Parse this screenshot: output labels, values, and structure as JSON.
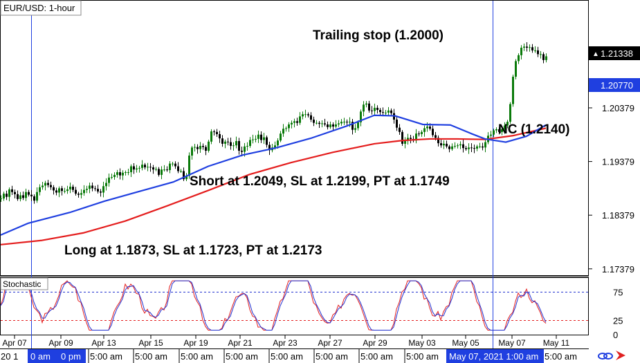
{
  "window_title": "EUR/USD: 1-hour",
  "stoch_title": "Stochastic",
  "annotations": {
    "trailing_stop": "Trailing stop (1.2000)",
    "nc": "NC (1.2140)",
    "short": "Short at 1.2049, SL at 1.2199, PT at 1.1749",
    "long": "Long at 1.1873, SL at 1.1723, PT at 1.2173"
  },
  "price_badges": {
    "last": "1.21338",
    "ma": "1.20770"
  },
  "bottom_bar": {
    "left_fragment": "20 1",
    "cursor_left_time": "0 am",
    "cursor_left_frag": "0 pm",
    "cursor_right_label": "May 07, 2021 1:00 am",
    "right_fragment": "5:00 am",
    "five_am": "5:00 am"
  },
  "colors": {
    "candle_up": "#0a7a0a",
    "candle_down": "#000000",
    "ma_fast": "#1f3fe0",
    "ma_slow": "#e41d1d",
    "stoch_k": "#e41d1d",
    "stoch_d": "#2030d0",
    "cursor": "#1f3fe0",
    "badge_blue": "#1f3fe0",
    "badge_black": "#000000"
  },
  "chart_data": {
    "type": "candlestick",
    "symbol": "EUR/USD",
    "timeframe": "1-hour",
    "price_axis": {
      "ticks": [
        "1.20379",
        "1.19379",
        "1.18379",
        "1.17379"
      ],
      "range": [
        1.1706,
        1.2225
      ]
    },
    "x_ticks": [
      "Apr 07",
      "Apr 09",
      "Apr 13",
      "Apr 15",
      "Apr 19",
      "Apr 21",
      "Apr 23",
      "Apr 27",
      "Apr 29",
      "May 03",
      "May 05",
      "May 07",
      "May 11"
    ],
    "close_path": [
      [
        0,
        1.1869
      ],
      [
        4,
        1.1878
      ],
      [
        8,
        1.1872
      ],
      [
        12,
        1.1886
      ],
      [
        16,
        1.1881
      ],
      [
        20,
        1.1877
      ],
      [
        24,
        1.1868
      ],
      [
        28,
        1.1875
      ],
      [
        32,
        1.187
      ],
      [
        36,
        1.1881
      ],
      [
        40,
        1.1876
      ],
      [
        44,
        1.1873
      ],
      [
        48,
        1.1865
      ],
      [
        52,
        1.1881
      ],
      [
        56,
        1.189
      ],
      [
        60,
        1.1893
      ],
      [
        64,
        1.1898
      ],
      [
        68,
        1.1894
      ],
      [
        72,
        1.189
      ],
      [
        76,
        1.1884
      ],
      [
        80,
        1.188
      ],
      [
        84,
        1.1888
      ],
      [
        88,
        1.1883
      ],
      [
        92,
        1.1883
      ],
      [
        96,
        1.1886
      ],
      [
        100,
        1.1891
      ],
      [
        104,
        1.1885
      ],
      [
        108,
        1.1878
      ],
      [
        112,
        1.1876
      ],
      [
        116,
        1.1879
      ],
      [
        120,
        1.1885
      ],
      [
        124,
        1.1887
      ],
      [
        128,
        1.1893
      ],
      [
        132,
        1.1888
      ],
      [
        136,
        1.1887
      ],
      [
        140,
        1.1882
      ],
      [
        144,
        1.188
      ],
      [
        148,
        1.1892
      ],
      [
        152,
        1.1898
      ],
      [
        156,
        1.1908
      ],
      [
        160,
        1.1909
      ],
      [
        164,
        1.1913
      ],
      [
        168,
        1.1918
      ],
      [
        172,
        1.1912
      ],
      [
        176,
        1.1917
      ],
      [
        180,
        1.1918
      ],
      [
        184,
        1.1918
      ],
      [
        188,
        1.1929
      ],
      [
        192,
        1.1923
      ],
      [
        196,
        1.1925
      ],
      [
        200,
        1.1926
      ],
      [
        204,
        1.1932
      ],
      [
        208,
        1.1927
      ],
      [
        212,
        1.1928
      ],
      [
        216,
        1.1927
      ],
      [
        220,
        1.1923
      ],
      [
        224,
        1.1924
      ],
      [
        228,
        1.1913
      ],
      [
        232,
        1.1923
      ],
      [
        236,
        1.1923
      ],
      [
        240,
        1.1922
      ],
      [
        244,
        1.1934
      ],
      [
        248,
        1.1934
      ],
      [
        252,
        1.1929
      ],
      [
        256,
        1.192
      ],
      [
        260,
        1.192
      ],
      [
        264,
        1.1905
      ],
      [
        268,
        1.1911
      ],
      [
        272,
        1.1949
      ],
      [
        276,
        1.1964
      ],
      [
        280,
        1.1965
      ],
      [
        284,
        1.1961
      ],
      [
        288,
        1.1967
      ],
      [
        292,
        1.1965
      ],
      [
        296,
        1.1958
      ],
      [
        300,
        1.1975
      ],
      [
        304,
        1.1994
      ],
      [
        308,
        1.1993
      ],
      [
        312,
        1.1989
      ],
      [
        316,
        1.1981
      ],
      [
        320,
        1.1971
      ],
      [
        324,
        1.1975
      ],
      [
        328,
        1.1974
      ],
      [
        332,
        1.1967
      ],
      [
        336,
        1.1968
      ],
      [
        340,
        1.1976
      ],
      [
        344,
        1.1958
      ],
      [
        348,
        1.1956
      ],
      [
        352,
        1.1966
      ],
      [
        356,
        1.1967
      ],
      [
        360,
        1.1978
      ],
      [
        364,
        1.1979
      ],
      [
        368,
        1.198
      ],
      [
        372,
        1.1988
      ],
      [
        376,
        1.1978
      ],
      [
        380,
        1.1983
      ],
      [
        384,
        1.1969
      ],
      [
        388,
        1.1959
      ],
      [
        392,
        1.1964
      ],
      [
        396,
        1.1968
      ],
      [
        400,
        1.1977
      ],
      [
        404,
        1.199
      ],
      [
        408,
        1.1999
      ],
      [
        412,
        1.2
      ],
      [
        416,
        1.2007
      ],
      [
        420,
        1.201
      ],
      [
        424,
        1.2013
      ],
      [
        428,
        1.201
      ],
      [
        432,
        1.2022
      ],
      [
        436,
        1.2026
      ],
      [
        440,
        1.2026
      ],
      [
        444,
        1.2024
      ],
      [
        448,
        1.2016
      ],
      [
        452,
        1.201
      ],
      [
        456,
        1.201
      ],
      [
        460,
        1.2008
      ],
      [
        464,
        1.2009
      ],
      [
        468,
        1.2007
      ],
      [
        472,
        1.2002
      ],
      [
        476,
        1.2007
      ],
      [
        480,
        1.2003
      ],
      [
        484,
        1.2007
      ],
      [
        488,
        1.2009
      ],
      [
        492,
        1.2012
      ],
      [
        496,
        1.2012
      ],
      [
        500,
        1.2011
      ],
      [
        504,
        1.2012
      ],
      [
        508,
        1.1997
      ],
      [
        512,
        1.2
      ],
      [
        516,
        1.2011
      ],
      [
        520,
        1.2031
      ],
      [
        524,
        1.2044
      ],
      [
        528,
        1.2046
      ],
      [
        532,
        1.2033
      ],
      [
        536,
        1.2032
      ],
      [
        540,
        1.2038
      ],
      [
        544,
        1.2034
      ],
      [
        548,
        1.203
      ],
      [
        552,
        1.2029
      ],
      [
        556,
        1.2029
      ],
      [
        560,
        1.2033
      ],
      [
        564,
        1.2028
      ],
      [
        568,
        1.2016
      ],
      [
        572,
        1.2001
      ],
      [
        576,
        1.1993
      ],
      [
        580,
        1.1971
      ],
      [
        584,
        1.1978
      ],
      [
        588,
        1.1982
      ],
      [
        592,
        1.198
      ],
      [
        596,
        1.1977
      ],
      [
        600,
        1.199
      ],
      [
        604,
        1.1989
      ],
      [
        608,
        1.1993
      ],
      [
        612,
        1.2
      ],
      [
        616,
        1.2003
      ],
      [
        620,
        1.1999
      ],
      [
        624,
        1.1987
      ],
      [
        628,
        1.1982
      ],
      [
        632,
        1.1972
      ],
      [
        636,
        1.1968
      ],
      [
        640,
        1.1971
      ],
      [
        644,
        1.1966
      ],
      [
        648,
        1.1961
      ],
      [
        652,
        1.1966
      ],
      [
        656,
        1.1967
      ],
      [
        660,
        1.1968
      ],
      [
        664,
        1.197
      ],
      [
        668,
        1.1963
      ],
      [
        672,
        1.1961
      ],
      [
        676,
        1.1964
      ],
      [
        680,
        1.1963
      ],
      [
        684,
        1.1962
      ],
      [
        688,
        1.1966
      ],
      [
        692,
        1.1966
      ],
      [
        696,
        1.1964
      ],
      [
        700,
        1.1974
      ],
      [
        704,
        1.1986
      ],
      [
        708,
        1.1988
      ],
      [
        712,
        1.1996
      ],
      [
        716,
        1.1998
      ],
      [
        720,
        1.1993
      ],
      [
        724,
        1.1998
      ],
      [
        728,
        1.2005
      ],
      [
        732,
        1.2012
      ],
      [
        736,
        1.2045
      ],
      [
        740,
        1.2096
      ],
      [
        744,
        1.2125
      ],
      [
        748,
        1.2136
      ],
      [
        752,
        1.215
      ],
      [
        756,
        1.2152
      ],
      [
        760,
        1.215
      ],
      [
        764,
        1.2151
      ],
      [
        768,
        1.2145
      ],
      [
        772,
        1.2145
      ],
      [
        776,
        1.2138
      ],
      [
        780,
        1.2138
      ],
      [
        784,
        1.2127
      ],
      [
        788,
        1.2134
      ]
    ],
    "ma_fast_path": [
      [
        0,
        1.1801
      ],
      [
        40,
        1.1823
      ],
      [
        100,
        1.1843
      ],
      [
        150,
        1.1864
      ],
      [
        200,
        1.1882
      ],
      [
        250,
        1.19
      ],
      [
        300,
        1.1929
      ],
      [
        350,
        1.195
      ],
      [
        400,
        1.1964
      ],
      [
        450,
        1.1982
      ],
      [
        500,
        1.2004
      ],
      [
        540,
        1.2024
      ],
      [
        570,
        1.2023
      ],
      [
        610,
        1.2007
      ],
      [
        650,
        1.2006
      ],
      [
        680,
        1.199
      ],
      [
        700,
        1.198
      ],
      [
        730,
        1.1974
      ],
      [
        760,
        1.1985
      ],
      [
        788,
        1.2006
      ]
    ],
    "ma_slow_path": [
      [
        0,
        1.1783
      ],
      [
        60,
        1.1791
      ],
      [
        120,
        1.1805
      ],
      [
        180,
        1.1827
      ],
      [
        240,
        1.1855
      ],
      [
        300,
        1.1884
      ],
      [
        360,
        1.1914
      ],
      [
        420,
        1.1936
      ],
      [
        480,
        1.1955
      ],
      [
        540,
        1.1971
      ],
      [
        580,
        1.1977
      ],
      [
        620,
        1.198
      ],
      [
        660,
        1.198
      ],
      [
        700,
        1.1979
      ],
      [
        740,
        1.1986
      ],
      [
        788,
        1.2
      ]
    ],
    "stochastic": {
      "levels": [
        "75",
        "25",
        "0"
      ],
      "overbought": 75,
      "oversold": 25,
      "range": [
        0,
        100
      ]
    },
    "cursor_lines_x": [
      45,
      712
    ]
  }
}
